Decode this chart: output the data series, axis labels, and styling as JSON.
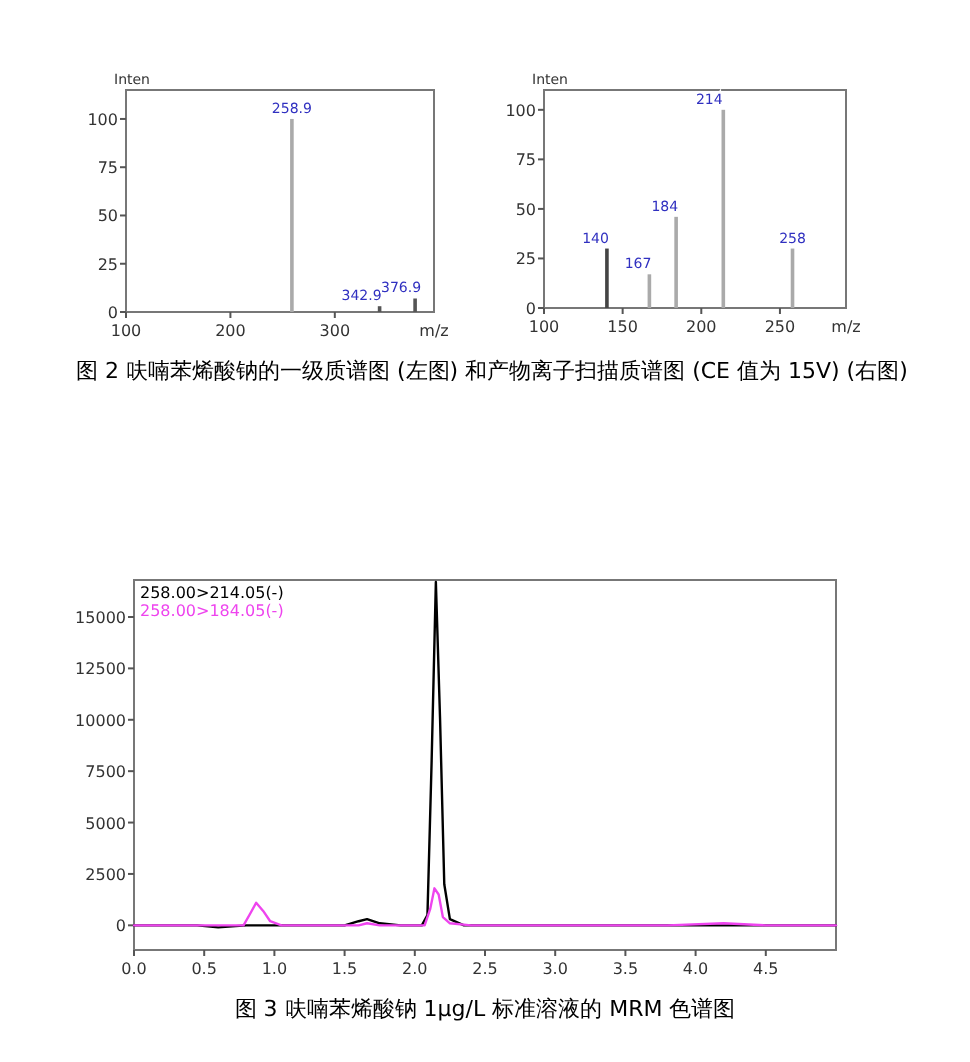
{
  "chart_data": [
    {
      "type": "bar",
      "ylabel": "Inten",
      "xlabel": "m/z",
      "x": [
        258.9,
        342.9,
        376.9
      ],
      "values": [
        100,
        3,
        7
      ],
      "colors": [
        "#aaaaaa",
        "#555555",
        "#555555"
      ],
      "xlim": [
        100,
        395
      ],
      "ylim": [
        0,
        115
      ],
      "xticks": [
        100,
        200,
        300
      ],
      "yticks": [
        0,
        25,
        50,
        75,
        100
      ],
      "annotations": [
        {
          "text": "258.9",
          "x": 258.9,
          "y": 100
        },
        {
          "text": "342.9",
          "x": 342.9,
          "y": 3
        },
        {
          "text": "376.9",
          "x": 376.9,
          "y": 7
        },
        "图 2 呋喃苯烯酸钠的一级质谱图 (左图) 和产物离子扫描质谱图 (CE 值为 15V) (右图)"
      ]
    },
    {
      "type": "bar",
      "ylabel": "Inten",
      "xlabel": "m/z",
      "x": [
        140,
        167,
        184,
        214,
        258
      ],
      "values": [
        30,
        17,
        46,
        100,
        30
      ],
      "colors": [
        "#444444",
        "#aaaaaa",
        "#aaaaaa",
        "#aaaaaa",
        "#aaaaaa"
      ],
      "xlim": [
        100,
        292
      ],
      "ylim": [
        0,
        110
      ],
      "xticks": [
        100,
        150,
        200,
        250
      ],
      "yticks": [
        0,
        25,
        50,
        75,
        100
      ],
      "annotations": [
        {
          "text": "140",
          "x": 140,
          "y": 30
        },
        {
          "text": "167",
          "x": 167,
          "y": 17
        },
        {
          "text": "184",
          "x": 184,
          "y": 46
        },
        {
          "text": "214",
          "x": 214,
          "y": 100
        },
        {
          "text": "258",
          "x": 258,
          "y": 30
        }
      ]
    },
    {
      "type": "line",
      "legend": "top left",
      "xlim": [
        0,
        5.0
      ],
      "ylim": [
        -1200,
        16800
      ],
      "xticks": [
        {
          "value": 0,
          "label": "0.0"
        },
        {
          "value": 0.5,
          "label": "0.5"
        },
        {
          "value": 1,
          "label": "1.0"
        },
        {
          "value": 1.5,
          "label": "1.5"
        },
        {
          "value": 2,
          "label": "2.0"
        },
        {
          "value": 2.5,
          "label": "2.5"
        },
        {
          "value": 3,
          "label": "3.0"
        },
        {
          "value": 3.5,
          "label": "3.5"
        },
        {
          "value": 4,
          "label": "4.0"
        },
        {
          "value": 4.5,
          "label": "4.5"
        }
      ],
      "yticks": [
        0,
        2500,
        5000,
        7500,
        10000,
        12500,
        15000
      ],
      "series": [
        {
          "name": "258.00>214.05(-)",
          "color": "#000000",
          "x": [
            0,
            0.3,
            0.45,
            0.6,
            0.8,
            1.2,
            1.5,
            1.6,
            1.66,
            1.75,
            1.9,
            2.05,
            2.09,
            2.12,
            2.15,
            2.18,
            2.21,
            2.25,
            2.35,
            2.6,
            3.5,
            4.2,
            4.6,
            5.0
          ],
          "values": [
            0,
            0,
            0,
            -100,
            0,
            0,
            0,
            200,
            300,
            100,
            0,
            0,
            500,
            8000,
            16700,
            10000,
            2000,
            300,
            0,
            0,
            0,
            0,
            0,
            0
          ]
        },
        {
          "name": "258.00>184.05(-)",
          "color": "#ee44ee",
          "x": [
            0,
            0.78,
            0.83,
            0.87,
            0.92,
            0.97,
            1.05,
            1.6,
            1.66,
            1.75,
            2.07,
            2.11,
            2.14,
            2.17,
            2.2,
            2.25,
            2.4,
            3.8,
            4.2,
            4.5,
            5.0
          ],
          "values": [
            0,
            0,
            600,
            1100,
            700,
            200,
            0,
            0,
            100,
            0,
            0,
            800,
            1800,
            1500,
            400,
            100,
            0,
            0,
            100,
            0,
            0
          ]
        }
      ],
      "annotations": [
        "图 3 呋喃苯烯酸钠 1μg/L 标准溶液的 MRM 色谱图"
      ]
    }
  ]
}
